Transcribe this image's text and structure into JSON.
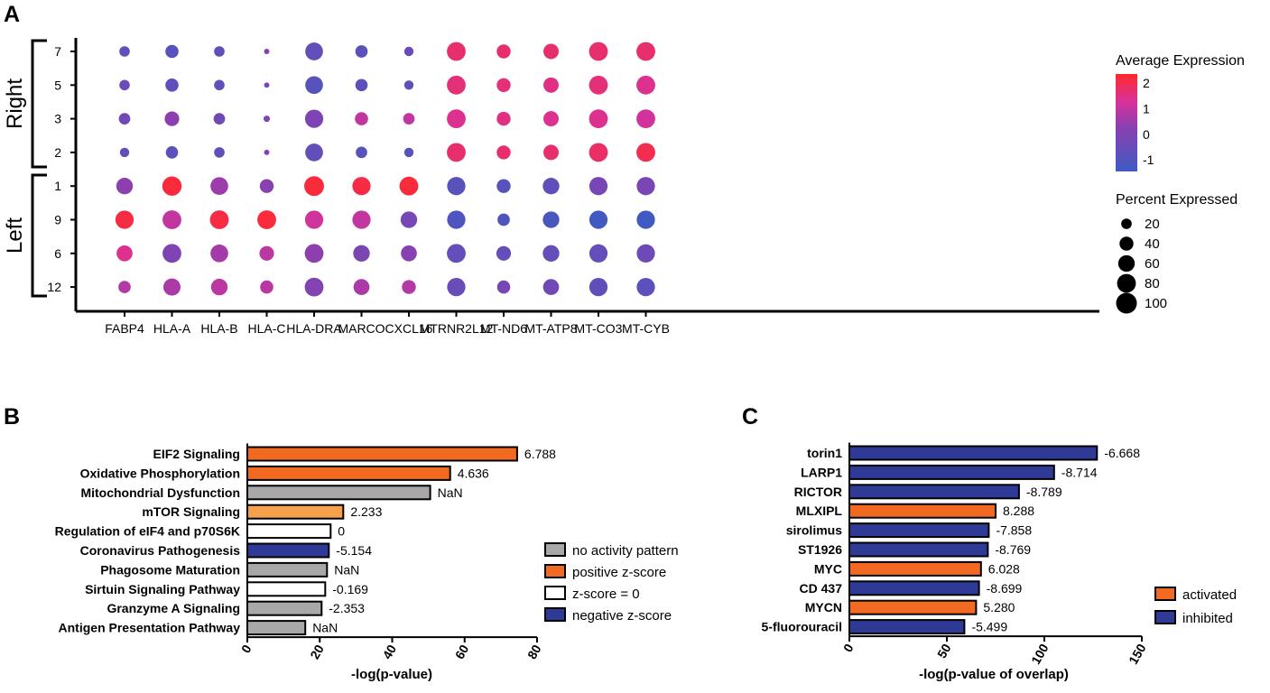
{
  "panel_labels": {
    "a": "A",
    "b": "B",
    "c": "C"
  },
  "colors": {
    "axis": "#000000",
    "orange": "#f26a22",
    "light_orange": "#f5a04a",
    "blue": "#2e3a96",
    "gray": "#a8a8a8",
    "white": "#ffffff",
    "expr_high": "#ff2a2a",
    "expr_mid": "#c43aa8",
    "expr_low": "#3f5bc2"
  },
  "chart_data": [
    {
      "id": "A",
      "type": "scatter",
      "subtype": "dot-plot",
      "genes": [
        "FABP4",
        "HLA-A",
        "HLA-B",
        "HLA-C",
        "HLA-DRA",
        "MARCO",
        "CXCL16",
        "MTRNR2L12",
        "MT-ND6",
        "MT-ATP8",
        "MT-CO3",
        "MT-CYB"
      ],
      "clusters": [
        "7",
        "5",
        "3",
        "2",
        "1",
        "9",
        "6",
        "12"
      ],
      "groups": [
        {
          "label": "Right",
          "clusters": [
            "7",
            "5",
            "3",
            "2"
          ]
        },
        {
          "label": "Left",
          "clusters": [
            "1",
            "9",
            "6",
            "12"
          ]
        }
      ],
      "percent": [
        [
          20,
          35,
          20,
          3,
          70,
          30,
          15,
          80,
          40,
          50,
          80,
          80
        ],
        [
          20,
          35,
          20,
          3,
          70,
          30,
          15,
          80,
          40,
          50,
          80,
          80
        ],
        [
          25,
          45,
          25,
          5,
          75,
          35,
          25,
          80,
          40,
          50,
          80,
          80
        ],
        [
          15,
          30,
          20,
          3,
          70,
          25,
          15,
          80,
          40,
          50,
          80,
          80
        ],
        [
          60,
          85,
          70,
          40,
          90,
          75,
          80,
          75,
          40,
          60,
          75,
          75
        ],
        [
          75,
          80,
          80,
          80,
          75,
          75,
          60,
          75,
          30,
          60,
          75,
          75
        ],
        [
          55,
          80,
          70,
          45,
          80,
          60,
          55,
          80,
          45,
          60,
          75,
          75
        ],
        [
          30,
          65,
          60,
          35,
          80,
          55,
          40,
          75,
          35,
          55,
          75,
          75
        ]
      ],
      "expression": [
        [
          -0.7,
          -0.9,
          -0.7,
          0.1,
          -0.6,
          -0.8,
          -0.5,
          1.7,
          1.7,
          1.7,
          1.7,
          1.7
        ],
        [
          -0.5,
          -0.7,
          -0.6,
          -0.1,
          -0.9,
          -0.8,
          -0.8,
          1.6,
          1.6,
          1.5,
          1.6,
          1.4
        ],
        [
          -0.3,
          0.3,
          -0.3,
          0.0,
          0.0,
          1.0,
          1.0,
          1.4,
          1.5,
          1.4,
          1.4,
          1.2
        ],
        [
          -0.6,
          -0.8,
          -0.7,
          0.1,
          -0.6,
          -0.9,
          -0.9,
          1.7,
          1.7,
          1.7,
          1.8,
          2.0
        ],
        [
          0.3,
          2.2,
          0.5,
          0.2,
          2.2,
          2.1,
          2.2,
          -0.9,
          -0.9,
          -0.7,
          -0.2,
          -0.1
        ],
        [
          2.1,
          1.0,
          2.1,
          2.2,
          1.2,
          1.0,
          -0.2,
          -1.1,
          -1.1,
          -1.2,
          -1.4,
          -1.4
        ],
        [
          1.4,
          0.0,
          0.6,
          0.9,
          0.3,
          -0.1,
          0.2,
          -0.6,
          -0.6,
          -0.6,
          -0.6,
          -0.4
        ],
        [
          0.8,
          0.7,
          0.9,
          0.9,
          0.1,
          0.7,
          0.8,
          -0.5,
          -0.2,
          -0.3,
          -0.7,
          -0.8
        ]
      ],
      "legend_color_title": "Average Expression",
      "color_ticks": [
        "2",
        "1",
        "0",
        "-1"
      ],
      "color_tick_values": [
        2,
        1,
        0,
        -1
      ],
      "color_range": [
        -1.45,
        2.35
      ],
      "legend_size_title": "Percent Expressed",
      "size_ticks": [
        "20",
        "40",
        "60",
        "80",
        "100"
      ],
      "size_tick_values": [
        20,
        40,
        60,
        80,
        100
      ]
    },
    {
      "id": "B",
      "type": "bar",
      "orientation": "horizontal",
      "categories": [
        "EIF2 Signaling",
        "Oxidative Phosphorylation",
        "Mitochondrial Dysfunction",
        "mTOR Signaling",
        "Regulation of eIF4 and p70S6K",
        "Coronavirus Pathogenesis",
        "Phagosome Maturation",
        "Sirtuin Signaling Pathway",
        "Granzyme A Signaling",
        "Antigen Presentation Pathway"
      ],
      "values": [
        74.5,
        56,
        50.5,
        26.5,
        23,
        22.5,
        22,
        21.5,
        20.5,
        16
      ],
      "labels": [
        "6.788",
        "4.636",
        "NaN",
        "2.233",
        "0",
        "-5.154",
        "NaN",
        "-0.169",
        "-2.353",
        "NaN"
      ],
      "classes": [
        "positive",
        "positive",
        "none",
        "positive_light",
        "zero",
        "negative",
        "none",
        "zero",
        "none",
        "none"
      ],
      "xlabel": "-log(p-value)",
      "xlim": [
        0,
        80
      ],
      "xticks": [
        "0",
        "20",
        "40",
        "60",
        "80"
      ],
      "xtick_values": [
        0,
        20,
        40,
        60,
        80
      ],
      "legend": [
        {
          "label": "no activity pattern",
          "class": "none"
        },
        {
          "label": "positive z-score",
          "class": "positive"
        },
        {
          "label": "z-score = 0",
          "class": "zero"
        },
        {
          "label": "negative z-score",
          "class": "negative"
        }
      ]
    },
    {
      "id": "C",
      "type": "bar",
      "orientation": "horizontal",
      "categories": [
        "torin1",
        "LARP1",
        "RICTOR",
        "MLXIPL",
        "sirolimus",
        "ST1926",
        "MYC",
        "CD 437",
        "MYCN",
        "5-fluorouracil"
      ],
      "values": [
        127,
        105,
        87,
        75,
        71.5,
        71,
        67.5,
        66.5,
        65,
        59
      ],
      "labels": [
        "-6.668",
        "-8.714",
        "-8.789",
        "8.288",
        "-7.858",
        "-8.769",
        "6.028",
        "-8.699",
        "5.280",
        "-5.499"
      ],
      "classes": [
        "inhibited",
        "inhibited",
        "inhibited",
        "activated",
        "inhibited",
        "inhibited",
        "activated",
        "inhibited",
        "activated",
        "inhibited"
      ],
      "xlabel": "-log(p-value of overlap)",
      "xlim": [
        0,
        150
      ],
      "xticks": [
        "0",
        "50",
        "100",
        "150"
      ],
      "xtick_values": [
        0,
        50,
        100,
        150
      ],
      "legend": [
        {
          "label": "activated",
          "class": "activated"
        },
        {
          "label": "inhibited",
          "class": "inhibited"
        }
      ]
    }
  ]
}
